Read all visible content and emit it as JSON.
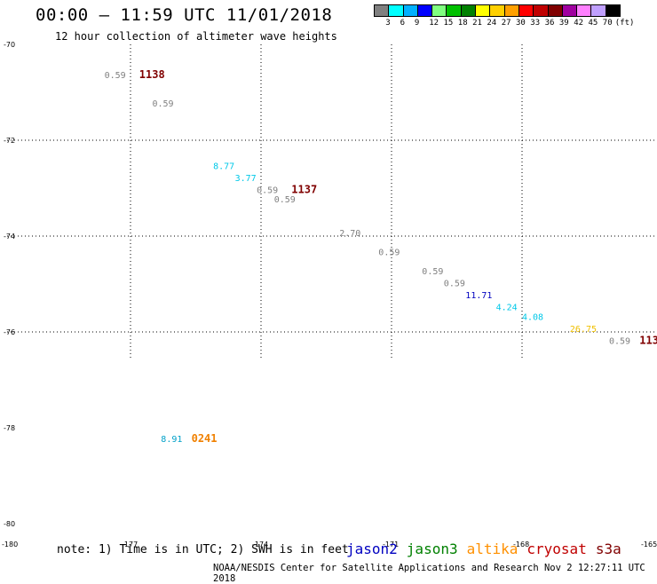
{
  "header": {
    "title": "00:00 – 11:59 UTC 11/01/2018",
    "subtitle": "12 hour collection of altimeter wave heights"
  },
  "colorbar": {
    "colors": [
      "#808080",
      "#00ffff",
      "#00b0ff",
      "#0000ff",
      "#80ff80",
      "#00c000",
      "#008000",
      "#ffff00",
      "#ffd000",
      "#ffa000",
      "#ff0000",
      "#c00000",
      "#800000",
      "#a000a0",
      "#ff80ff",
      "#c0a0ff",
      "#000000"
    ],
    "labels": [
      "3",
      "6",
      "9",
      "12",
      "15",
      "18",
      "21",
      "24",
      "27",
      "30",
      "33",
      "36",
      "39",
      "42",
      "45",
      "70"
    ],
    "unit": "(ft)"
  },
  "map": {
    "lat_ticks": [
      "-70",
      "-72",
      "-74",
      "-76",
      "-78",
      "-80"
    ],
    "lon_ticks": [
      "-180",
      "-177",
      "-174",
      "-171",
      "-168",
      "-165"
    ],
    "observations": [
      {
        "lon": -177.6,
        "lat": -70.7,
        "label": "0.59",
        "color": "#808080"
      },
      {
        "lon": -176.8,
        "lat": -70.7,
        "label": "1138",
        "color": "#800000",
        "time": true
      },
      {
        "lon": -176.5,
        "lat": -71.3,
        "label": "0.59",
        "color": "#808080"
      },
      {
        "lon": -175.1,
        "lat": -72.6,
        "label": "8.77",
        "color": "#00c8e8"
      },
      {
        "lon": -174.6,
        "lat": -72.85,
        "label": "3.77",
        "color": "#00c8e8"
      },
      {
        "lon": -174.1,
        "lat": -73.1,
        "label": "0.59",
        "color": "#808080"
      },
      {
        "lon": -173.7,
        "lat": -73.3,
        "label": "0.59",
        "color": "#808080"
      },
      {
        "lon": -173.3,
        "lat": -73.1,
        "label": "1137",
        "color": "#800000",
        "time": true
      },
      {
        "lon": -172.2,
        "lat": -74.0,
        "label": "2.70",
        "color": "#808080"
      },
      {
        "lon": -171.3,
        "lat": -74.4,
        "label": "0.59",
        "color": "#808080"
      },
      {
        "lon": -170.3,
        "lat": -74.8,
        "label": "0.59",
        "color": "#808080"
      },
      {
        "lon": -169.8,
        "lat": -75.05,
        "label": "0.59",
        "color": "#808080"
      },
      {
        "lon": -169.3,
        "lat": -75.3,
        "label": "11.71",
        "color": "#0000c0"
      },
      {
        "lon": -168.6,
        "lat": -75.55,
        "label": "4.24",
        "color": "#00c8e8"
      },
      {
        "lon": -168.0,
        "lat": -75.75,
        "label": "4.08",
        "color": "#00c8e8"
      },
      {
        "lon": -166.9,
        "lat": -76.0,
        "label": "26.75",
        "color": "#f0c000"
      },
      {
        "lon": -166.0,
        "lat": -76.25,
        "label": "0.59",
        "color": "#808080"
      },
      {
        "lon": -165.3,
        "lat": -76.25,
        "label": "113",
        "color": "#800000",
        "time": true
      },
      {
        "lon": -176.3,
        "lat": -78.3,
        "label": "8.91",
        "color": "#00a0c8"
      },
      {
        "lon": -175.6,
        "lat": -78.3,
        "label": "0241",
        "color": "#f08000",
        "time": true
      }
    ]
  },
  "footer": {
    "note": "note: 1) Time is in UTC; 2) SWH is in feet",
    "legend": [
      {
        "label": "jason2",
        "color": "#0000c0"
      },
      {
        "label": "jason3",
        "color": "#008000"
      },
      {
        "label": "altika",
        "color": "#ff9000"
      },
      {
        "label": "cryosat",
        "color": "#c00000"
      },
      {
        "label": "s3a",
        "color": "#800000"
      }
    ],
    "credit": "NOAA/NESDIS Center for Satellite Applications and Research    Nov  2 12:27:11 UTC 2018"
  }
}
